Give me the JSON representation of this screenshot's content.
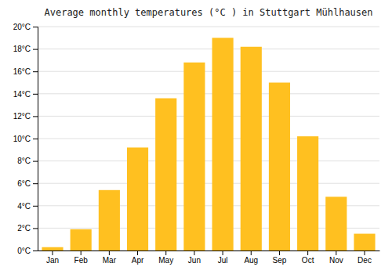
{
  "chart_data": {
    "type": "bar",
    "title": "Average monthly temperatures (°C ) in Stuttgart Mühlhausen",
    "categories": [
      "Jan",
      "Feb",
      "Mar",
      "Apr",
      "May",
      "Jun",
      "Jul",
      "Aug",
      "Sep",
      "Oct",
      "Nov",
      "Dec"
    ],
    "values": [
      0.3,
      1.9,
      5.4,
      9.2,
      13.6,
      16.8,
      19.0,
      18.2,
      15.0,
      10.2,
      4.8,
      1.5
    ],
    "color": "#FFC020",
    "ylim": [
      0,
      20
    ],
    "yticks": [
      {
        "value": 0,
        "label": "0°C"
      },
      {
        "value": 2,
        "label": "2°C"
      },
      {
        "value": 4,
        "label": "4°C"
      },
      {
        "value": 6,
        "label": "6°C"
      },
      {
        "value": 8,
        "label": "8°C"
      },
      {
        "value": 10,
        "label": "10°C"
      },
      {
        "value": 12,
        "label": "12°C"
      },
      {
        "value": 14,
        "label": "14°C"
      },
      {
        "value": 16,
        "label": "16°C"
      },
      {
        "value": 18,
        "label": "18°C"
      },
      {
        "value": 20,
        "label": "20°C"
      }
    ],
    "grid": true
  }
}
